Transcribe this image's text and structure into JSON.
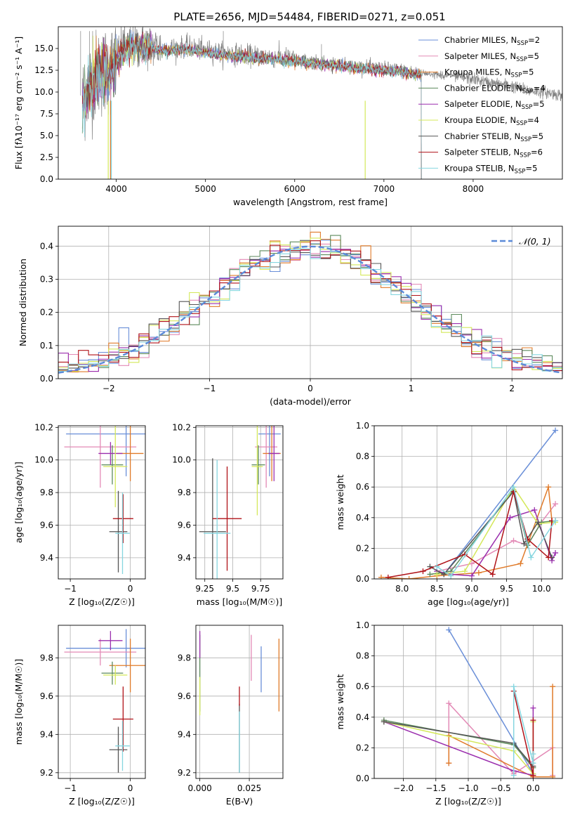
{
  "series": [
    {
      "name": "Chabrier MILES, N_SSP=2",
      "color": "#6a8fd8"
    },
    {
      "name": "Salpeter MILES, N_SSP=5",
      "color": "#e38ab6"
    },
    {
      "name": "Kroupa MILES, N_SSP=5",
      "color": "#e07b2a"
    },
    {
      "name": "Chabrier ELODIE, N_SSP=4",
      "color": "#5c8a5c"
    },
    {
      "name": "Salpeter ELODIE, N_SSP=5",
      "color": "#9b2fae"
    },
    {
      "name": "Kroupa ELODIE, N_SSP=4",
      "color": "#d4e85a"
    },
    {
      "name": "Chabrier STELIB, N_SSP=5",
      "color": "#555555"
    },
    {
      "name": "Salpeter STELIB, N_SSP=6",
      "color": "#b01218"
    },
    {
      "name": "Kroupa STELIB, N_SSP=5",
      "color": "#86d6e0"
    }
  ],
  "chart_data": [
    {
      "id": "spectrum",
      "type": "line",
      "title": "PLATE=2656, MJD=54484, FIBERID=0271, z=0.051",
      "xlabel": "wavelength [Angstrom, rest frame]",
      "ylabel": "Flux [fλ10⁻¹⁷ erg cm⁻² s⁻¹ A⁻¹]",
      "xlim": [
        3350,
        9000
      ],
      "ylim": [
        0,
        17.5
      ],
      "xticks": [
        4000,
        5000,
        6000,
        7000,
        8000
      ],
      "yticks": [
        0.0,
        2.5,
        5.0,
        7.5,
        10.0,
        12.5,
        15.0
      ],
      "data_x_range": [
        3620,
        9000
      ],
      "model_x_range": [
        3620,
        7420
      ],
      "data_profile": {
        "x": [
          3620,
          3700,
          3800,
          3900,
          3950,
          4000,
          4100,
          4300,
          4500,
          4800,
          5000,
          5200,
          5500,
          5800,
          6000,
          6300,
          6500,
          6700,
          7000,
          7200,
          7400,
          7600,
          7800,
          8000,
          8200,
          8400,
          8600,
          8800,
          9000
        ],
        "y": [
          9.0,
          11.0,
          12.2,
          12.6,
          12.8,
          13.8,
          15.2,
          15.5,
          15.0,
          15.2,
          14.8,
          14.5,
          14.2,
          14.0,
          13.8,
          13.4,
          13.3,
          13.0,
          12.8,
          12.6,
          12.2,
          12.0,
          11.8,
          11.5,
          11.0,
          10.8,
          10.2,
          10.0,
          9.6
        ]
      },
      "grid": false,
      "legend_position": "top-right"
    },
    {
      "id": "residuals",
      "type": "histogram",
      "xlabel": "(data-model)/error",
      "ylabel": "Normed distribution",
      "xlim": [
        -2.5,
        2.5
      ],
      "ylim": [
        0,
        0.46
      ],
      "xticks": [
        -2,
        -1,
        0,
        1,
        2
      ],
      "yticks": [
        0.0,
        0.1,
        0.2,
        0.3,
        0.4
      ],
      "bin_width": 0.1,
      "reference": {
        "name": "N(0,1)",
        "label": "𝒩(0, 1)",
        "mean": 0,
        "sigma": 1
      },
      "grid": true,
      "legend_position": "top-right"
    },
    {
      "id": "age_vs_Z",
      "type": "errorbar",
      "xlabel": "Z [log₁₀(Z/Z☉)]",
      "ylabel": "age  [log₁₀(age/yr)]",
      "xlim": [
        -1.2,
        0.25
      ],
      "ylim": [
        9.27,
        10.21
      ],
      "xticks": [
        -1,
        0
      ],
      "yticks": [
        9.4,
        9.6,
        9.8,
        10.0,
        10.2
      ],
      "points": [
        {
          "s": 0,
          "x": -0.07,
          "xe": 1.0,
          "y": 10.16,
          "ye": 0.26
        },
        {
          "s": 1,
          "x": -0.5,
          "xe": 0.6,
          "y": 10.08,
          "ye": 0.25
        },
        {
          "s": 2,
          "x": 0.0,
          "xe": 0.22,
          "y": 10.04,
          "ye": 0.17
        },
        {
          "s": 3,
          "x": -0.3,
          "xe": 0.18,
          "y": 9.97,
          "ye": 0.12
        },
        {
          "s": 4,
          "x": -0.33,
          "xe": 0.2,
          "y": 10.04,
          "ye": 0.07
        },
        {
          "s": 5,
          "x": -0.25,
          "xe": 0.2,
          "y": 9.96,
          "ye": 0.25
        },
        {
          "s": 6,
          "x": -0.2,
          "xe": 0.15,
          "y": 9.56,
          "ye": 0.25
        },
        {
          "s": 7,
          "x": -0.12,
          "xe": 0.17,
          "y": 9.64,
          "ye": 0.15
        },
        {
          "s": 8,
          "x": -0.13,
          "xe": 0.12,
          "y": 9.55,
          "ye": 0.25
        }
      ],
      "grid": true
    },
    {
      "id": "age_vs_mass",
      "type": "errorbar",
      "xlabel": "mass [log₁₀(M/M☉)]",
      "ylabel": "",
      "xlim": [
        9.17,
        9.95
      ],
      "ylim": [
        9.27,
        10.21
      ],
      "xticks": [
        9.25,
        9.5,
        9.75
      ],
      "yticks": [
        9.4,
        9.6,
        9.8,
        10.0,
        10.2
      ],
      "points": [
        {
          "s": 0,
          "x": 9.83,
          "xe": 0.1,
          "y": 10.16,
          "ye": 0.26
        },
        {
          "s": 1,
          "x": 9.8,
          "xe": 0.1,
          "y": 10.08,
          "ye": 0.25
        },
        {
          "s": 2,
          "x": 9.85,
          "xe": 0.08,
          "y": 10.04,
          "ye": 0.17
        },
        {
          "s": 3,
          "x": 9.73,
          "xe": 0.06,
          "y": 9.97,
          "ye": 0.12
        },
        {
          "s": 4,
          "x": 9.87,
          "xe": 0.05,
          "y": 10.04,
          "ye": 0.17
        },
        {
          "s": 5,
          "x": 9.72,
          "xe": 0.05,
          "y": 9.96,
          "ye": 0.3
        },
        {
          "s": 6,
          "x": 9.32,
          "xe": 0.12,
          "y": 9.56,
          "ye": 0.45
        },
        {
          "s": 7,
          "x": 9.45,
          "xe": 0.13,
          "y": 9.64,
          "ye": 0.32
        },
        {
          "s": 8,
          "x": 9.36,
          "xe": 0.12,
          "y": 9.55,
          "ye": 0.45
        }
      ],
      "grid": true
    },
    {
      "id": "weight_vs_age",
      "type": "line",
      "xlabel": "age  [log₁₀(age/yr)]",
      "ylabel": "mass weight",
      "xlim": [
        7.6,
        10.3
      ],
      "ylim": [
        0,
        1
      ],
      "xticks": [
        8.0,
        8.5,
        9.0,
        9.5,
        10.0
      ],
      "yticks": [
        0.0,
        0.2,
        0.4,
        0.6,
        0.8,
        1.0
      ],
      "lines": [
        {
          "s": 0,
          "x": [
            8.6,
            10.2
          ],
          "y": [
            0.03,
            0.97
          ]
        },
        {
          "s": 1,
          "x": [
            8.5,
            9.0,
            9.6,
            9.8,
            10.0,
            10.2
          ],
          "y": [
            0.05,
            0.1,
            0.25,
            0.22,
            0.37,
            0.49
          ]
        },
        {
          "s": 2,
          "x": [
            7.7,
            8.1,
            8.5,
            9.1,
            9.7,
            10.1,
            10.15
          ],
          "y": [
            0.01,
            0.0,
            0.02,
            0.04,
            0.1,
            0.6,
            0.38
          ]
        },
        {
          "s": 3,
          "x": [
            8.4,
            8.7,
            9.6,
            9.8,
            10.0,
            10.2
          ],
          "y": [
            0.03,
            0.05,
            0.58,
            0.22,
            0.37,
            0.38
          ]
        },
        {
          "s": 4,
          "x": [
            8.5,
            8.7,
            9.0,
            9.55,
            9.9,
            10.15,
            10.2
          ],
          "y": [
            0.05,
            0.03,
            0.02,
            0.4,
            0.45,
            0.12,
            0.17
          ]
        },
        {
          "s": 5,
          "x": [
            8.5,
            8.9,
            9.6,
            9.95,
            10.2
          ],
          "y": [
            0.03,
            0.05,
            0.6,
            0.36,
            0.37
          ]
        },
        {
          "s": 6,
          "x": [
            8.4,
            8.6,
            9.6,
            9.75,
            9.95,
            10.15
          ],
          "y": [
            0.08,
            0.03,
            0.57,
            0.23,
            0.37,
            0.14
          ]
        },
        {
          "s": 7,
          "x": [
            7.8,
            8.3,
            8.9,
            9.3,
            9.6,
            9.8,
            10.1,
            10.15
          ],
          "y": [
            0.01,
            0.05,
            0.16,
            0.03,
            0.57,
            0.26,
            0.14,
            0.38
          ]
        },
        {
          "s": 8,
          "x": [
            8.5,
            8.7,
            9.6,
            9.85,
            10.2
          ],
          "y": [
            0.08,
            0.02,
            0.6,
            0.14,
            0.38
          ]
        }
      ],
      "grid": true
    },
    {
      "id": "mass_vs_Z",
      "type": "errorbar",
      "xlabel": "Z [log₁₀(Z/Z☉)]",
      "ylabel": "mass [log₁₀(M/M☉)]",
      "xlim": [
        -1.2,
        0.25
      ],
      "ylim": [
        9.17,
        9.97
      ],
      "xticks": [
        -1,
        0
      ],
      "yticks": [
        9.2,
        9.4,
        9.6,
        9.8
      ],
      "points": [
        {
          "s": 0,
          "x": -0.07,
          "xe": 1.0,
          "y": 9.85,
          "ye": 0.1
        },
        {
          "s": 1,
          "x": -0.5,
          "xe": 0.6,
          "y": 9.83,
          "ye": 0.07
        },
        {
          "s": 2,
          "x": 0.0,
          "xe": 0.35,
          "y": 9.76,
          "ye": 0.14
        },
        {
          "s": 3,
          "x": -0.3,
          "xe": 0.18,
          "y": 9.72,
          "ye": 0.06
        },
        {
          "s": 4,
          "x": -0.33,
          "xe": 0.2,
          "y": 9.89,
          "ye": 0.05
        },
        {
          "s": 5,
          "x": -0.25,
          "xe": 0.2,
          "y": 9.71,
          "ye": 0.05
        },
        {
          "s": 6,
          "x": -0.2,
          "xe": 0.15,
          "y": 9.32,
          "ye": 0.12
        },
        {
          "s": 7,
          "x": -0.12,
          "xe": 0.17,
          "y": 9.48,
          "ye": 0.17
        },
        {
          "s": 8,
          "x": -0.13,
          "xe": 0.12,
          "y": 9.34,
          "ye": 0.13
        }
      ],
      "grid": true
    },
    {
      "id": "mass_vs_ebv",
      "type": "errorbar",
      "xlabel": "E(B-V)",
      "ylabel": "",
      "xlim": [
        -0.002,
        0.042
      ],
      "ylim": [
        9.17,
        9.97
      ],
      "xticks": [
        0.0,
        0.025
      ],
      "xtick_labels": [
        "0.000",
        "0.025"
      ],
      "yticks": [
        9.2,
        9.4,
        9.6,
        9.8
      ],
      "points": [
        {
          "s": 0,
          "x": 0.031,
          "xe": 0,
          "y": 9.74,
          "ye": 0.12
        },
        {
          "s": 1,
          "x": 0.026,
          "xe": 0,
          "y": 9.8,
          "ye": 0.12
        },
        {
          "s": 2,
          "x": 0.04,
          "xe": 0,
          "y": 9.71,
          "ye": 0.19
        },
        {
          "s": 3,
          "x": 0.0,
          "xe": 0,
          "y": 9.72,
          "ye": 0.2
        },
        {
          "s": 4,
          "x": 0.0,
          "xe": 0,
          "y": 9.87,
          "ye": 0.07
        },
        {
          "s": 5,
          "x": 0.0,
          "xe": 0,
          "y": 9.6,
          "ye": 0.1
        },
        {
          "s": 6,
          "x": 0.02,
          "xe": 0,
          "y": 9.38,
          "ye": 0.18
        },
        {
          "s": 7,
          "x": 0.02,
          "xe": 0,
          "y": 9.6,
          "ye": 0.05
        },
        {
          "s": 8,
          "x": 0.02,
          "xe": 0,
          "y": 9.36,
          "ye": 0.16
        }
      ],
      "grid": true
    },
    {
      "id": "weight_vs_Z",
      "type": "line",
      "xlabel": "Z [log₁₀(Z/Z☉)]",
      "ylabel": "mass weight",
      "xlim": [
        -2.45,
        0.45
      ],
      "ylim": [
        0,
        1
      ],
      "xticks": [
        -2.0,
        -1.5,
        -1.0,
        -0.5,
        0.0
      ],
      "yticks": [
        0.0,
        0.2,
        0.4,
        0.6,
        0.8,
        1.0
      ],
      "lines": [
        {
          "s": 0,
          "x": [
            -1.3,
            0.0
          ],
          "y": [
            0.97,
            0.03
          ]
        },
        {
          "s": 1,
          "x": [
            -1.3,
            -1.3,
            -0.3,
            0.3,
            0.3
          ],
          "y": [
            0.1,
            0.49,
            0.03,
            0.2,
            0.02
          ]
        },
        {
          "s": 2,
          "x": [
            -1.3,
            -1.3,
            0.0,
            0.3,
            0.3
          ],
          "y": [
            0.1,
            0.28,
            0.01,
            0.01,
            0.6
          ]
        },
        {
          "s": 3,
          "x": [
            -2.3,
            -0.3,
            0.0
          ],
          "y": [
            0.38,
            0.22,
            0.07
          ]
        },
        {
          "s": 4,
          "x": [
            -2.3,
            -0.3,
            0.0,
            0.0
          ],
          "y": [
            0.37,
            0.05,
            0.02,
            0.46
          ]
        },
        {
          "s": 5,
          "x": [
            -2.3,
            -0.3,
            0.0,
            0.0
          ],
          "y": [
            0.37,
            0.18,
            0.03,
            0.37
          ]
        },
        {
          "s": 6,
          "x": [
            -2.3,
            -0.3,
            0.0
          ],
          "y": [
            0.37,
            0.23,
            0.08
          ]
        },
        {
          "s": 7,
          "x": [
            -0.3,
            0.0,
            0.0
          ],
          "y": [
            0.57,
            0.02,
            0.38
          ]
        },
        {
          "s": 8,
          "x": [
            -0.3,
            -0.3,
            0.0,
            0.0
          ],
          "y": [
            0.02,
            0.6,
            0.1,
            0.16
          ]
        }
      ],
      "grid": true
    }
  ]
}
